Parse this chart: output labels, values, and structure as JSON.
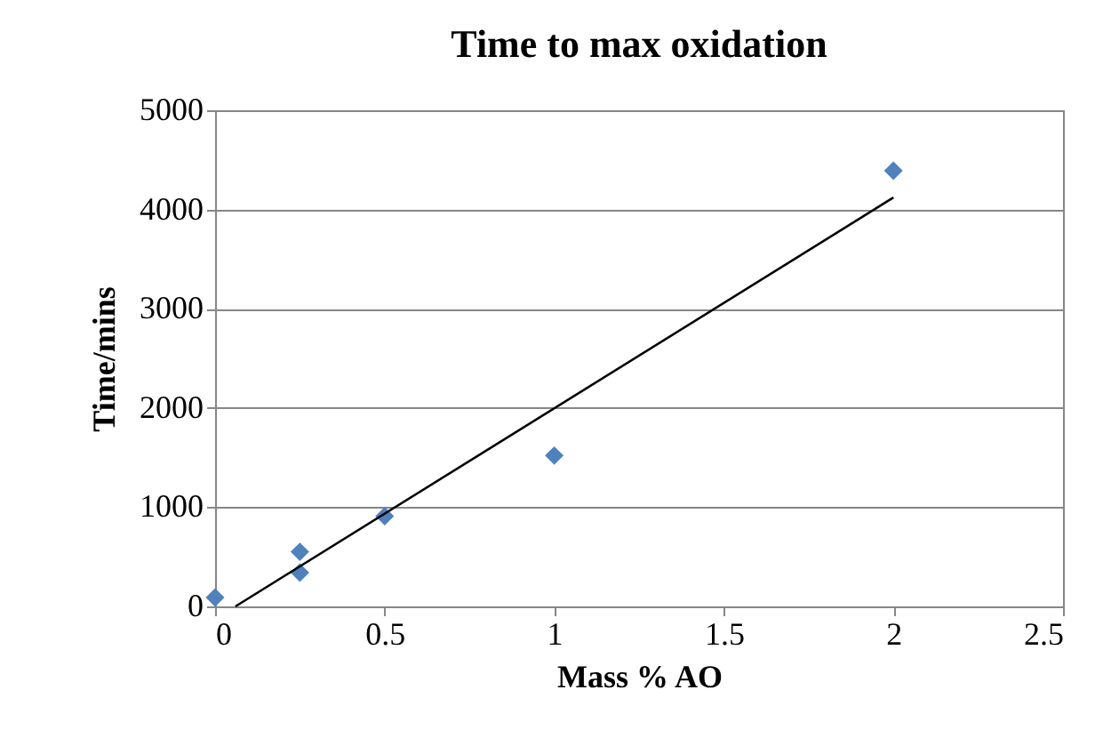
{
  "chart_data": {
    "type": "scatter",
    "title": "Time to max oxidation",
    "xlabel": "Mass % AO",
    "ylabel": "Time/mins",
    "series": [
      {
        "type": "scatter",
        "color": "#4f81bd",
        "marker": "diamond",
        "x": [
          0,
          0.25,
          0.25,
          0.5,
          1,
          2
        ],
        "values": [
          90,
          550,
          340,
          910,
          1520,
          4390
        ]
      },
      {
        "type": "line",
        "color": "#000000",
        "marker": "none",
        "x": [
          0.06,
          2
        ],
        "values": [
          0,
          4120
        ]
      }
    ],
    "xlim": [
      0,
      2.5
    ],
    "xticks": [
      0,
      0.5,
      1,
      1.5,
      2,
      2.5
    ],
    "ylim": [
      0,
      5000
    ],
    "yticks": [
      0,
      1000,
      2000,
      3000,
      4000,
      5000
    ],
    "grid": "y"
  }
}
